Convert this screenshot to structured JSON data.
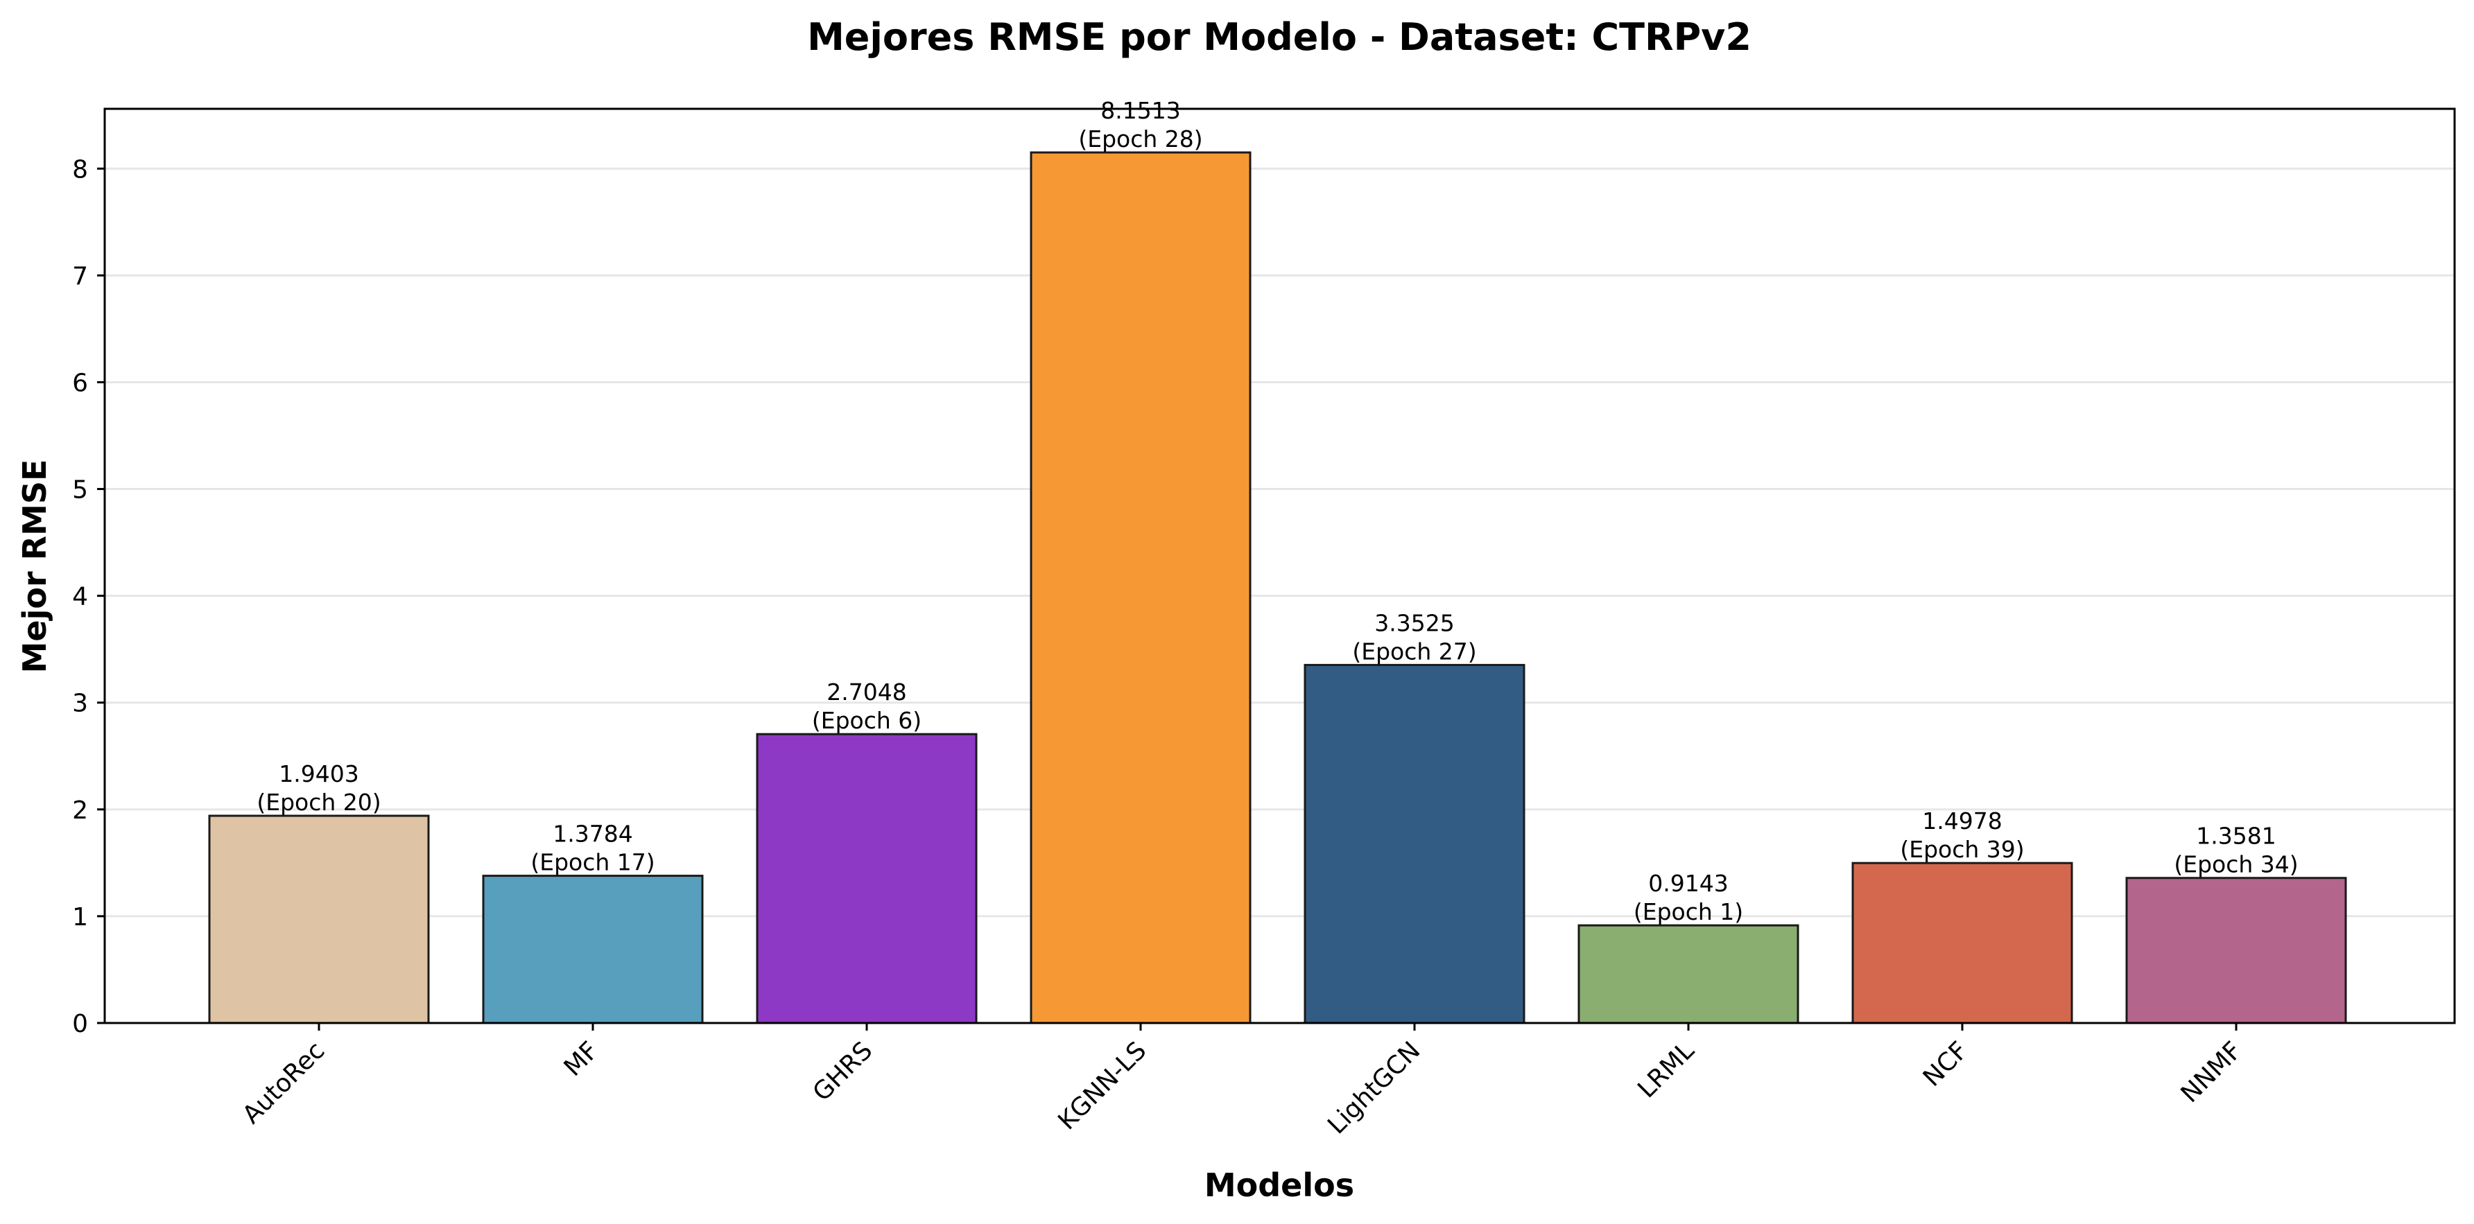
{
  "chart_data": {
    "type": "bar",
    "title": "Mejores RMSE por Modelo - Dataset: CTRPv2",
    "xlabel": "Modelos",
    "ylabel": "Mejor RMSE",
    "ylim": [
      0,
      8.56
    ],
    "yticks": [
      0,
      1,
      2,
      3,
      4,
      5,
      6,
      7,
      8
    ],
    "grid": "y",
    "categories": [
      "AutoRec",
      "MF",
      "GHRS",
      "KGNN-LS",
      "LightGCN",
      "LRML",
      "NCF",
      "NNMF"
    ],
    "values": [
      1.9403,
      1.3784,
      2.7048,
      8.1513,
      3.3525,
      0.9143,
      1.4978,
      1.3581
    ],
    "value_labels": [
      "1.9403",
      "1.3784",
      "2.7048",
      "8.1513",
      "3.3525",
      "0.9143",
      "1.4978",
      "1.3581"
    ],
    "epoch_labels": [
      "(Epoch 20)",
      "(Epoch 17)",
      "(Epoch 6)",
      "(Epoch 28)",
      "(Epoch 27)",
      "(Epoch 1)",
      "(Epoch 39)",
      "(Epoch 34)"
    ],
    "colors": [
      "#DEC4A4",
      "#589EBD",
      "#8D39C5",
      "#F69935",
      "#325C84",
      "#8AAE70",
      "#D3684F",
      "#B3658B"
    ],
    "edge_color": "#1a1a1a",
    "grid_color": "#e6e6e6"
  }
}
